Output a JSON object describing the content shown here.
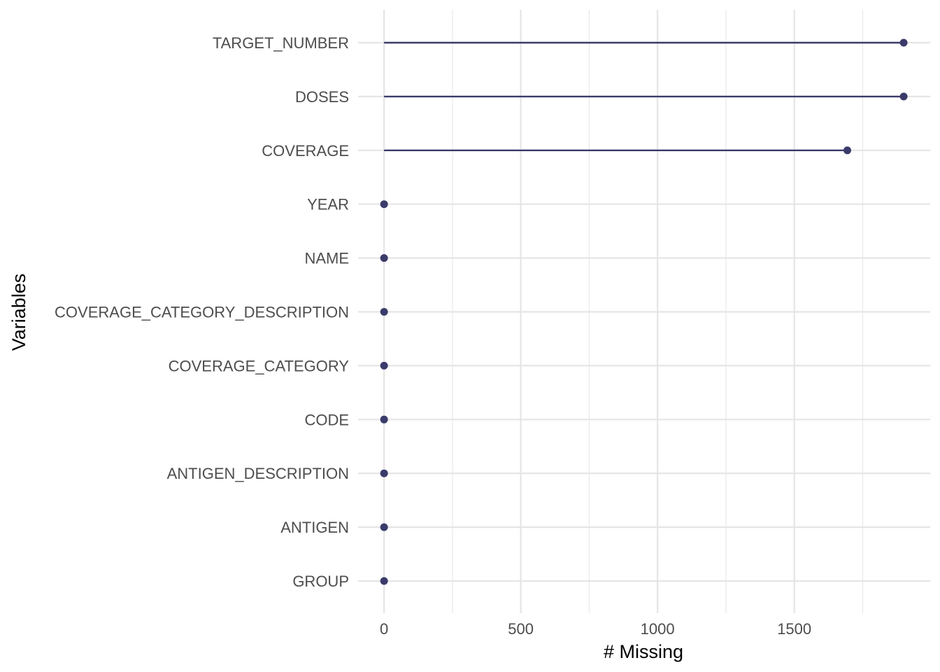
{
  "chart_data": {
    "type": "lollipop",
    "title": "",
    "xlabel": "# Missing",
    "ylabel": "Variables",
    "xlim": [
      -95,
      1997
    ],
    "x_ticks": [
      0,
      500,
      1000,
      1500
    ],
    "x_tick_labels": [
      "0",
      "500",
      "1000",
      "1500"
    ],
    "x_minor_ticks": [
      250,
      750,
      1250,
      1750
    ],
    "grid": true,
    "legend": "none",
    "categories": [
      "TARGET_NUMBER",
      "DOSES",
      "COVERAGE",
      "YEAR",
      "NAME",
      "COVERAGE_CATEGORY_DESCRIPTION",
      "COVERAGE_CATEGORY",
      "CODE",
      "ANTIGEN_DESCRIPTION",
      "ANTIGEN",
      "GROUP"
    ],
    "values": [
      1900,
      1900,
      1694,
      0,
      0,
      0,
      0,
      0,
      0,
      0,
      0
    ],
    "color": "#3b3b6b",
    "grid_color": "#e5e5e5"
  }
}
